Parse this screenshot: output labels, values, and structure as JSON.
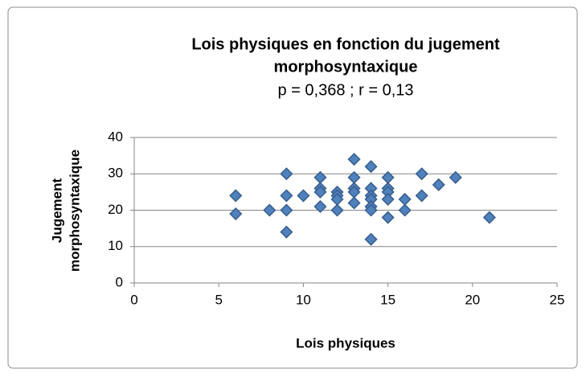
{
  "chart_data": {
    "type": "scatter",
    "title": [
      "Lois physiques en fonction du jugement",
      "morphosyntaxique"
    ],
    "subtitle": "p = 0,368 ; r = 0,13",
    "x_label": "Lois physiques",
    "y_label": [
      "Jugement",
      "morphosyntaxique"
    ],
    "x": [
      6,
      6,
      8,
      9,
      9,
      9,
      9,
      10,
      11,
      11,
      11,
      11,
      12,
      12,
      12,
      12,
      13,
      13,
      13,
      13,
      13,
      14,
      14,
      14,
      14,
      14,
      14,
      14,
      15,
      15,
      15,
      15,
      15,
      16,
      16,
      17,
      17,
      18,
      19,
      21
    ],
    "values": [
      24,
      19,
      20,
      30,
      24,
      20,
      14,
      24,
      29,
      26,
      25,
      21,
      25,
      24,
      23,
      20,
      34,
      29,
      26,
      25,
      22,
      32,
      26,
      24,
      23,
      21,
      20,
      12,
      29,
      26,
      25,
      23,
      18,
      23,
      20,
      30,
      24,
      27,
      29,
      18
    ],
    "color": "#4f81bd",
    "xlim": [
      0,
      25
    ],
    "xticks": [
      0,
      5,
      10,
      15,
      20,
      25
    ],
    "ylim": [
      0,
      40
    ],
    "yticks": [
      0,
      10,
      20,
      30,
      40
    ],
    "grid": true
  }
}
